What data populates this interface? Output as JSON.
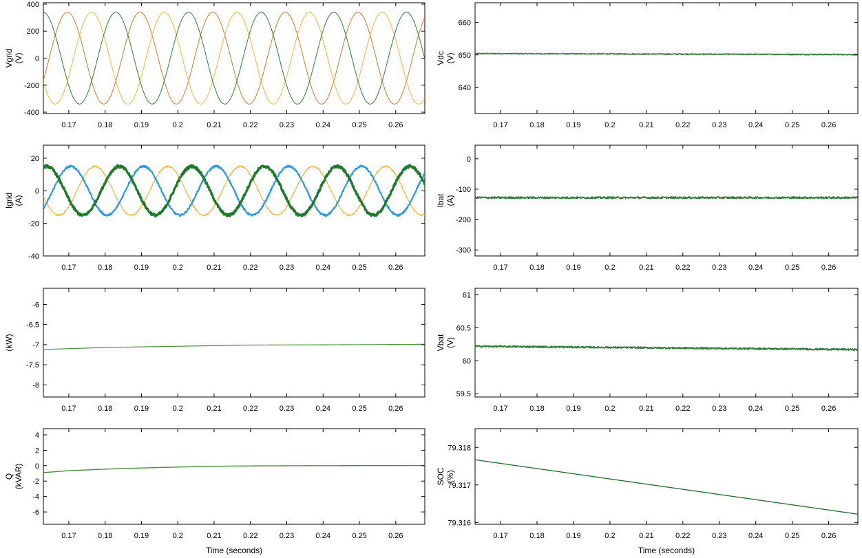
{
  "chart_data": [
    {
      "id": "vgrid",
      "type": "line",
      "title": "",
      "ylabel": "Vgrid",
      "yunit": "(V)",
      "xlabel": "",
      "xlim": [
        0.163,
        0.268
      ],
      "ylim": [
        -410,
        410
      ],
      "xticks": [
        "0.17",
        "0.18",
        "0.19",
        "0.2",
        "0.21",
        "0.22",
        "0.23",
        "0.24",
        "0.25",
        "0.26"
      ],
      "yticks": [
        "400",
        "200",
        "0",
        "-200",
        "-400"
      ],
      "grid": false,
      "series": [
        {
          "color": "#cc7a2e",
          "kind": "sine",
          "amplitude": 340,
          "frequency_hz": 50,
          "phase_deg": -83,
          "noise": 0
        },
        {
          "color": "#e8b838",
          "kind": "sine",
          "amplitude": 340,
          "frequency_hz": 50,
          "phase_deg": 157,
          "noise": 0
        },
        {
          "color": "#2e7d32",
          "kind": "sine",
          "amplitude": 340,
          "frequency_hz": 50,
          "phase_deg": 37,
          "noise": 0
        }
      ]
    },
    {
      "id": "vdc",
      "type": "line",
      "title": "",
      "ylabel": "Vdc",
      "yunit": "(V)",
      "xlabel": "",
      "xlim": [
        0.163,
        0.268
      ],
      "ylim": [
        632,
        666
      ],
      "xticks": [
        "0.17",
        "0.18",
        "0.19",
        "0.2",
        "0.21",
        "0.22",
        "0.23",
        "0.24",
        "0.25",
        "0.26"
      ],
      "yticks": [
        "660",
        "650",
        "640"
      ],
      "grid": false,
      "series": [
        {
          "color": "#2e7d32",
          "kind": "linear",
          "points": [
            [
              0.163,
              650.4
            ],
            [
              0.268,
              650.1
            ]
          ],
          "noise": 0.15
        }
      ]
    },
    {
      "id": "igrid",
      "type": "line",
      "title": "",
      "ylabel": "Igrid",
      "yunit": "(A)",
      "xlabel": "",
      "xlim": [
        0.163,
        0.268
      ],
      "ylim": [
        -40,
        28
      ],
      "xticks": [
        "0.17",
        "0.18",
        "0.19",
        "0.2",
        "0.21",
        "0.22",
        "0.23",
        "0.24",
        "0.25",
        "0.26"
      ],
      "yticks": [
        "20",
        "0",
        "-20",
        "-40"
      ],
      "grid": false,
      "series": [
        {
          "color": "#e8b838",
          "kind": "sine",
          "amplitude": 15,
          "frequency_hz": 50,
          "phase_deg": 140,
          "noise": 0.5
        },
        {
          "color": "#2e9be0",
          "kind": "sine",
          "amplitude": 15,
          "frequency_hz": 50,
          "phase_deg": -100,
          "noise": 0.6
        },
        {
          "color": "#1f7a2e",
          "kind": "sine",
          "amplitude": 15,
          "frequency_hz": 50,
          "phase_deg": 20,
          "noise": 0.8
        }
      ]
    },
    {
      "id": "ibat",
      "type": "line",
      "title": "",
      "ylabel": "Ibat",
      "yunit": "(A)",
      "xlabel": "",
      "xlim": [
        0.163,
        0.268
      ],
      "ylim": [
        -320,
        45
      ],
      "xticks": [
        "0.17",
        "0.18",
        "0.19",
        "0.2",
        "0.21",
        "0.22",
        "0.23",
        "0.24",
        "0.25",
        "0.26"
      ],
      "yticks": [
        "0",
        "-100",
        "-200",
        "-300"
      ],
      "grid": false,
      "series": [
        {
          "color": "#2e7d32",
          "kind": "linear",
          "points": [
            [
              0.163,
              -128
            ],
            [
              0.268,
              -128
            ]
          ],
          "noise": 3
        }
      ]
    },
    {
      "id": "p",
      "type": "line",
      "title": "",
      "ylabel": "(kW)",
      "yunit": "",
      "xlabel": "",
      "xlim": [
        0.163,
        0.268
      ],
      "ylim": [
        -8.3,
        -5.6
      ],
      "xticks": [
        "0.17",
        "0.18",
        "0.19",
        "0.2",
        "0.21",
        "0.22",
        "0.23",
        "0.24",
        "0.25",
        "0.26"
      ],
      "yticks": [
        "-6",
        "-6.5",
        "-7",
        "-7.5",
        "-8"
      ],
      "grid": false,
      "series": [
        {
          "color": "#4a8f3a",
          "kind": "curve",
          "points": [
            [
              0.163,
              -7.12
            ],
            [
              0.18,
              -7.07
            ],
            [
              0.2,
              -7.04
            ],
            [
              0.22,
              -7.01
            ],
            [
              0.25,
              -7.0
            ],
            [
              0.268,
              -6.99
            ]
          ],
          "noise": 0
        }
      ]
    },
    {
      "id": "vbat",
      "type": "line",
      "title": "",
      "ylabel": "Vbat",
      "yunit": "(V)",
      "xlabel": "",
      "xlim": [
        0.163,
        0.268
      ],
      "ylim": [
        59.45,
        61.1
      ],
      "xticks": [
        "0.17",
        "0.18",
        "0.19",
        "0.2",
        "0.21",
        "0.22",
        "0.23",
        "0.24",
        "0.25",
        "0.26"
      ],
      "yticks": [
        "61",
        "60.5",
        "60",
        "59.5"
      ],
      "grid": false,
      "series": [
        {
          "color": "#2e7d32",
          "kind": "linear",
          "points": [
            [
              0.163,
              60.22
            ],
            [
              0.268,
              60.17
            ]
          ],
          "noise": 0.012
        }
      ]
    },
    {
      "id": "q",
      "type": "line",
      "title": "",
      "ylabel": "Q",
      "yunit": "(kVAR)",
      "xlabel": "Time (seconds)",
      "xlim": [
        0.163,
        0.268
      ],
      "ylim": [
        -7.6,
        4.8
      ],
      "xticks": [
        "0.17",
        "0.18",
        "0.19",
        "0.2",
        "0.21",
        "0.22",
        "0.23",
        "0.24",
        "0.25",
        "0.26"
      ],
      "yticks": [
        "4",
        "2",
        "0",
        "-2",
        "-4",
        "-6"
      ],
      "grid": false,
      "series": [
        {
          "color": "#4a8f3a",
          "kind": "curve",
          "points": [
            [
              0.163,
              -0.9
            ],
            [
              0.17,
              -0.65
            ],
            [
              0.18,
              -0.45
            ],
            [
              0.19,
              -0.3
            ],
            [
              0.2,
              -0.18
            ],
            [
              0.21,
              -0.08
            ],
            [
              0.22,
              -0.03
            ],
            [
              0.24,
              0.0
            ],
            [
              0.268,
              0.02
            ]
          ],
          "noise": 0
        }
      ]
    },
    {
      "id": "soc",
      "type": "line",
      "title": "",
      "ylabel": "SOC",
      "yunit": "(%)",
      "xlabel": "Time (seconds)",
      "xlim": [
        0.163,
        0.268
      ],
      "ylim": [
        79.31595,
        79.3185
      ],
      "xticks": [
        "0.17",
        "0.18",
        "0.19",
        "0.2",
        "0.21",
        "0.22",
        "0.23",
        "0.24",
        "0.25",
        "0.26"
      ],
      "yticks": [
        "79.318",
        "79.317",
        "79.316"
      ],
      "grid": false,
      "series": [
        {
          "color": "#1f6e2a",
          "kind": "linear",
          "points": [
            [
              0.163,
              79.31767
            ],
            [
              0.268,
              79.31622
            ]
          ],
          "noise": 0
        }
      ]
    }
  ]
}
